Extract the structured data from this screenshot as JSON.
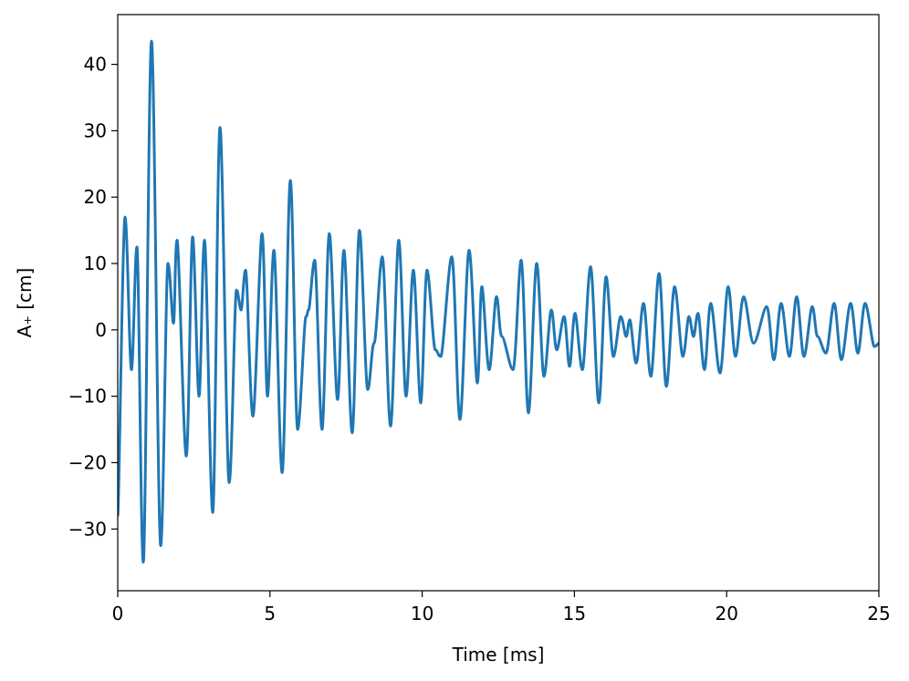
{
  "chart_data": {
    "type": "line",
    "xlabel": "Time [ms]",
    "ylabel": "A₊ [cm]",
    "x": [
      0,
      0.24,
      0.45,
      0.63,
      0.84,
      1.11,
      1.41,
      1.65,
      1.83,
      1.95,
      2.25,
      2.46,
      2.67,
      2.85,
      3.12,
      3.36,
      3.66,
      3.9,
      4.05,
      4.2,
      4.44,
      4.74,
      4.92,
      5.13,
      5.4,
      5.67,
      5.91,
      6.18,
      6.27,
      6.47,
      6.71,
      6.95,
      7.22,
      7.43,
      7.7,
      7.94,
      8.21,
      8.42,
      8.69,
      8.96,
      9.23,
      9.47,
      9.71,
      9.95,
      10.16,
      10.43,
      10.61,
      10.97,
      11.24,
      11.54,
      11.81,
      11.96,
      12.2,
      12.44,
      12.62,
      12.98,
      13.25,
      13.49,
      13.76,
      14.0,
      14.24,
      14.42,
      14.66,
      14.84,
      15.02,
      15.26,
      15.53,
      15.8,
      16.04,
      16.28,
      16.52,
      16.7,
      16.82,
      17.03,
      17.27,
      17.51,
      17.78,
      18.02,
      18.29,
      18.56,
      18.76,
      18.91,
      19.06,
      19.27,
      19.48,
      19.78,
      20.05,
      20.29,
      20.56,
      20.89,
      21.31,
      21.55,
      21.79,
      22.06,
      22.3,
      22.54,
      22.81,
      22.99,
      23.26,
      23.53,
      23.77,
      24.07,
      24.31,
      24.55,
      24.85,
      25
    ],
    "series": [
      {
        "color": "#1f77b4",
        "values": [
          -28,
          17,
          -6,
          12.5,
          -35,
          43.5,
          -32.5,
          10,
          1,
          13.5,
          -19,
          14,
          -10,
          13.5,
          -27.5,
          30.5,
          -23,
          6,
          3,
          9,
          -13,
          14.5,
          -10,
          12,
          -21.5,
          22.5,
          -15,
          2,
          3,
          10.5,
          -15,
          14.5,
          -10.5,
          12,
          -15.5,
          15,
          -9,
          -2,
          11,
          -14.5,
          13.5,
          -10,
          9,
          -11,
          9,
          -3,
          -4,
          11,
          -13.5,
          12,
          -8,
          6.5,
          -6,
          5,
          -1,
          -6,
          10.5,
          -12.5,
          10,
          -7,
          3,
          -3,
          2,
          -5.5,
          2.5,
          -6,
          9.5,
          -11,
          8,
          -4,
          2,
          -1,
          1.5,
          -5,
          4,
          -7,
          8.5,
          -8.5,
          6.5,
          -4,
          2,
          -1,
          2.5,
          -6,
          4,
          -6.5,
          6.5,
          -4,
          5,
          -2,
          3.5,
          -4.5,
          4,
          -4,
          5,
          -4,
          3.5,
          -1,
          -3.5,
          4,
          -4.5,
          4,
          -3.5,
          4,
          -2.5,
          -2
        ]
      }
    ],
    "xlim": [
      0,
      25
    ],
    "xticks": [
      0,
      5,
      10,
      15,
      20,
      25
    ],
    "ylim": [
      -39.3,
      47.5
    ],
    "yticks": [
      {
        "value": -30,
        "label": "−30"
      },
      {
        "value": -20,
        "label": "−20"
      },
      {
        "value": -10,
        "label": "−10"
      },
      0,
      10,
      20,
      30,
      40
    ]
  }
}
